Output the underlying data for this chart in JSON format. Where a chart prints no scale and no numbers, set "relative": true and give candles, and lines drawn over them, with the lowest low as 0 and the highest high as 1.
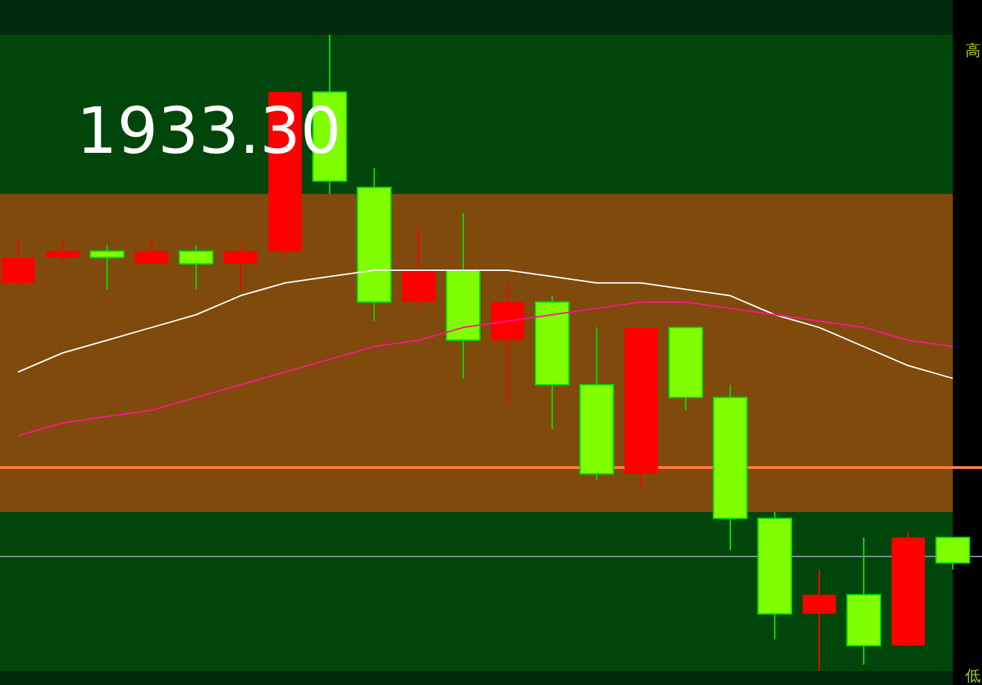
{
  "chart_data": {
    "type": "candlestick",
    "relative": true,
    "categories": [
      null,
      null,
      null,
      null,
      null,
      null,
      null,
      null,
      null,
      null,
      null,
      null,
      null,
      null,
      null,
      null,
      null,
      null,
      null,
      null,
      null,
      null
    ],
    "ohlc": [
      [
        0.61,
        0.68,
        0.61,
        0.65
      ],
      [
        0.65,
        0.68,
        0.64,
        0.66
      ],
      [
        0.66,
        0.67,
        0.6,
        0.65
      ],
      [
        0.64,
        0.68,
        0.64,
        0.66
      ],
      [
        0.66,
        0.67,
        0.6,
        0.64
      ],
      [
        0.64,
        0.67,
        0.6,
        0.66
      ],
      [
        0.66,
        0.91,
        0.65,
        0.91
      ],
      [
        0.91,
        1.0,
        0.75,
        0.77
      ],
      [
        0.76,
        0.79,
        0.55,
        0.58
      ],
      [
        0.58,
        0.7,
        0.57,
        0.63
      ],
      [
        0.63,
        0.72,
        0.46,
        0.52
      ],
      [
        0.52,
        0.61,
        0.42,
        0.58
      ],
      [
        0.58,
        0.59,
        0.38,
        0.45
      ],
      [
        0.45,
        0.54,
        0.3,
        0.31
      ],
      [
        0.31,
        0.54,
        0.29,
        0.54
      ],
      [
        0.54,
        0.54,
        0.41,
        0.43
      ],
      [
        0.43,
        0.45,
        0.19,
        0.24
      ],
      [
        0.24,
        0.25,
        0.05,
        0.09
      ],
      [
        0.09,
        0.16,
        0.0,
        0.12
      ],
      [
        0.12,
        0.21,
        0.01,
        0.04
      ],
      [
        0.04,
        0.22,
        0.04,
        0.21
      ],
      [
        0.21,
        0.21,
        0.16,
        0.17
      ]
    ],
    "colors": [
      "#ff0000",
      "#ff0000",
      "#7fff00",
      "#ff0000",
      "#7fff00",
      "#ff0000",
      "#ff0000",
      "#7fff00",
      "#7fff00",
      "#ff0000",
      "#7fff00",
      "#ff0000",
      "#7fff00",
      "#7fff00",
      "#ff0000",
      "#7fff00",
      "#7fff00",
      "#7fff00",
      "#ff0000",
      "#7fff00",
      "#ff0000",
      "#7fff00"
    ],
    "series": [
      {
        "type": "line",
        "color": "#ffffff",
        "values": [
          0.47,
          0.5,
          0.52,
          0.54,
          0.56,
          0.59,
          0.61,
          0.62,
          0.63,
          0.63,
          0.63,
          0.63,
          0.62,
          0.61,
          0.61,
          0.6,
          0.59,
          0.56,
          0.54,
          0.51,
          0.48,
          0.46
        ]
      },
      {
        "type": "line",
        "color": "#ff1493",
        "values": [
          0.37,
          0.39,
          0.4,
          0.41,
          0.43,
          0.45,
          0.47,
          0.49,
          0.51,
          0.52,
          0.54,
          0.55,
          0.56,
          0.57,
          0.58,
          0.58,
          0.57,
          0.56,
          0.55,
          0.54,
          0.52,
          0.51
        ]
      }
    ],
    "bands": [
      {
        "axis": "y",
        "from": 0.25,
        "to": 0.75,
        "color": "#7f4a0c"
      }
    ],
    "ref_lines": [
      {
        "axis": "y",
        "value": 0.32,
        "color": "#ff8040"
      },
      {
        "axis": "y",
        "value": 0.18,
        "color": "#8090a0"
      }
    ],
    "annotations": [
      "1933.30",
      "高",
      "低"
    ]
  }
}
